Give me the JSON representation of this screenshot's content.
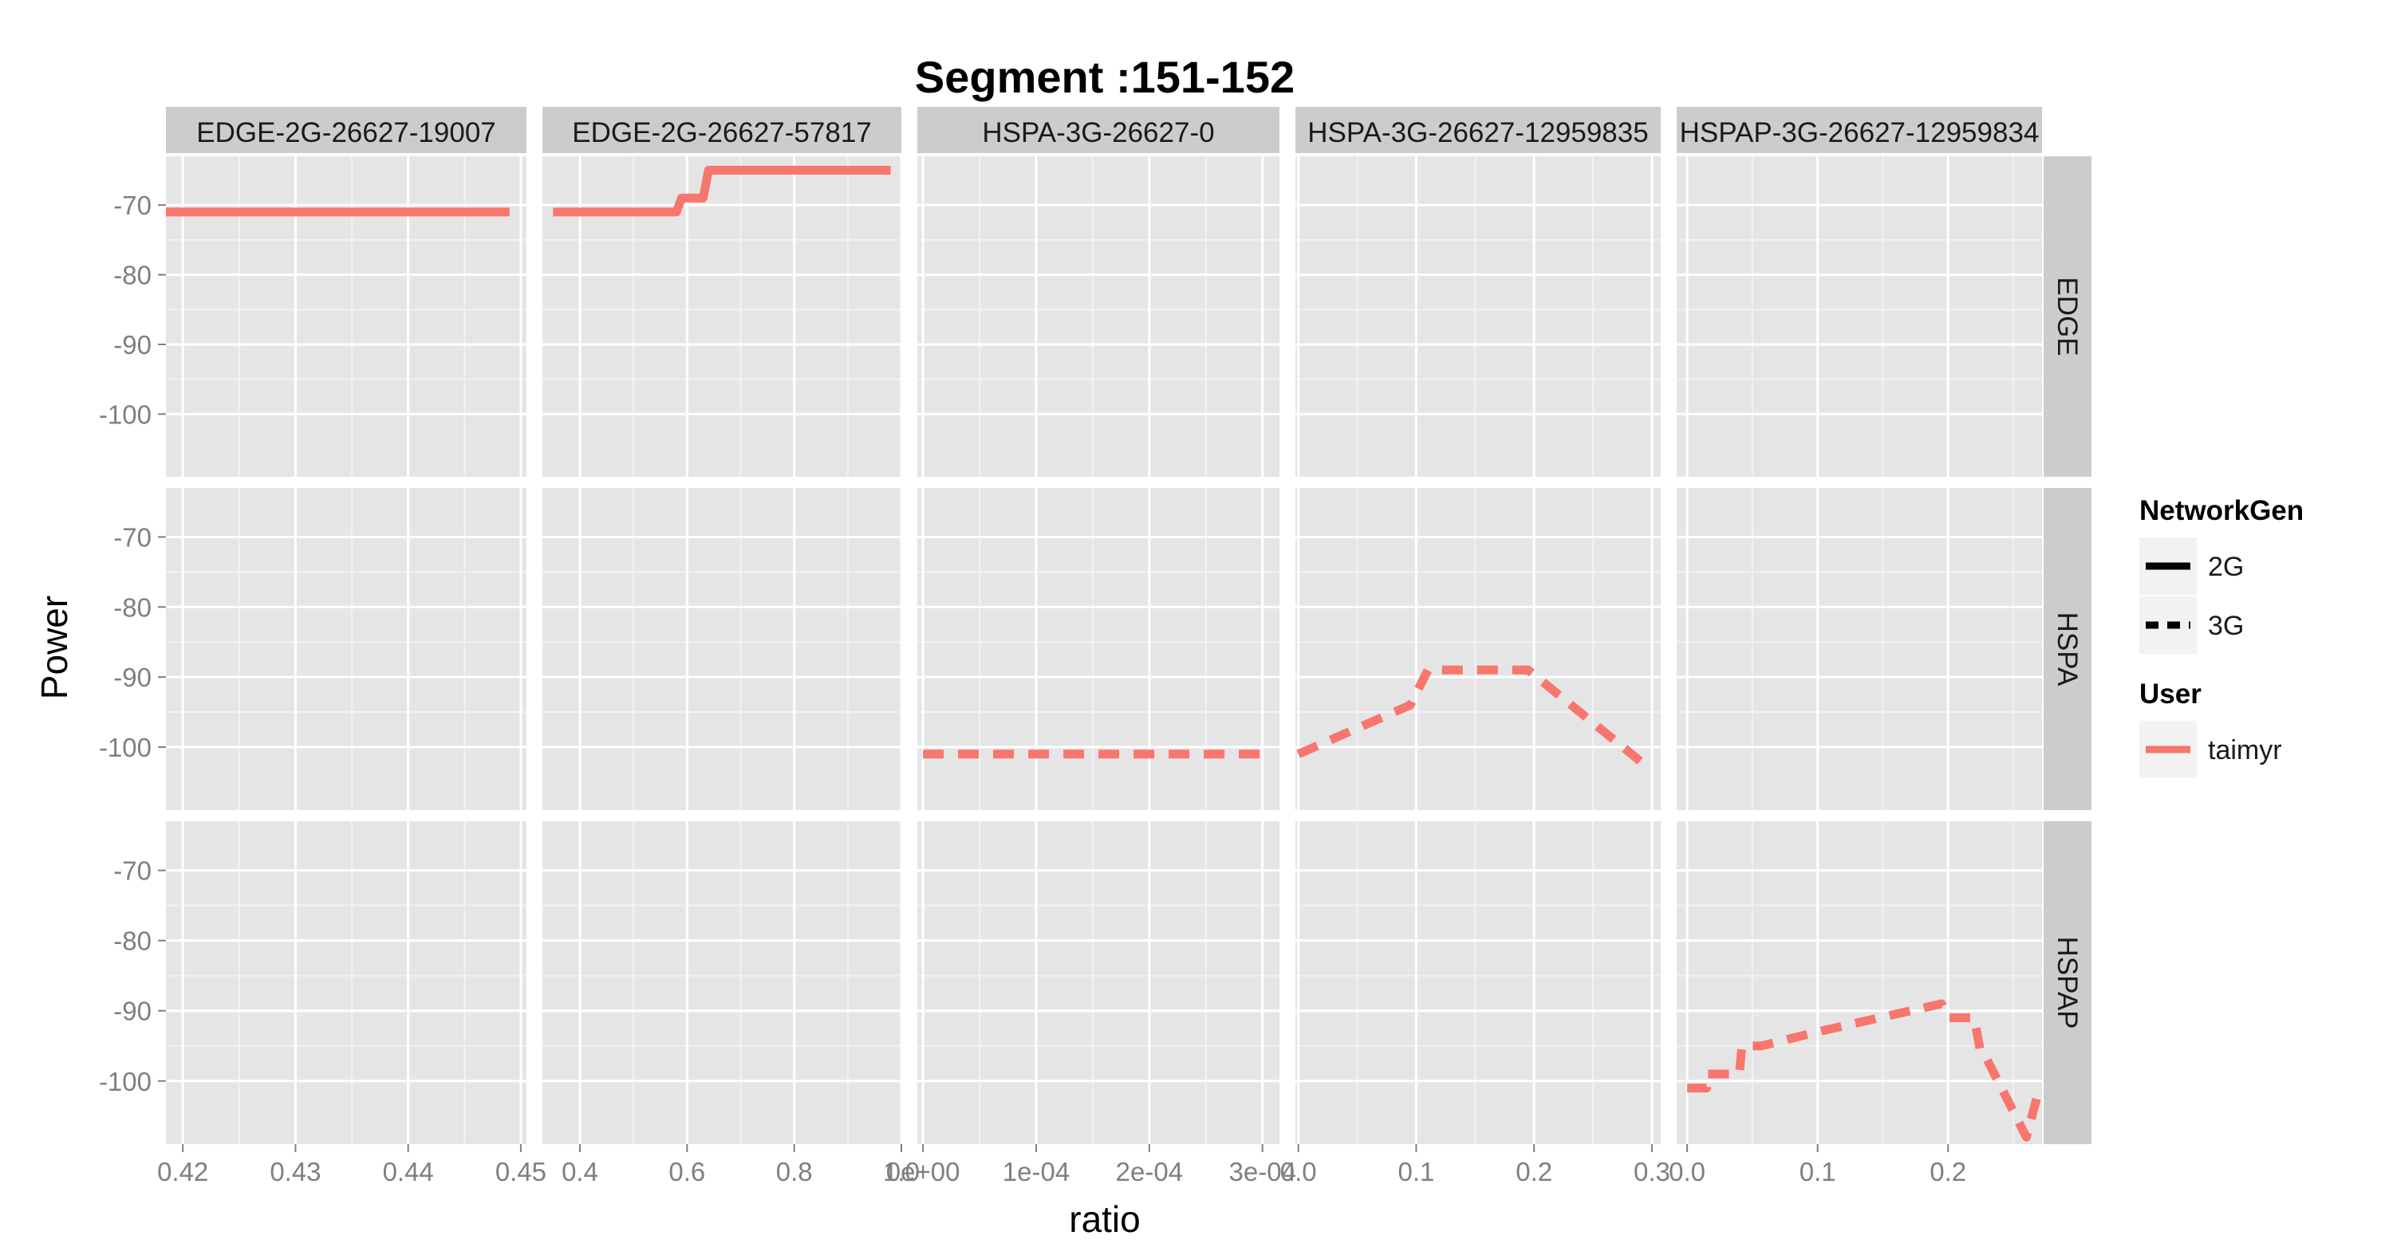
{
  "chart_data": {
    "type": "line",
    "title": "Segment :151-152",
    "xlabel": "ratio",
    "ylabel": "Power",
    "grid": true,
    "legend_position": "right",
    "facet_cols": [
      {
        "label": "EDGE-2G-26627-19007",
        "xlim": [
          0.4185,
          0.4505
        ],
        "xticks": [
          0.42,
          0.43,
          0.44,
          0.45
        ],
        "xtick_labels": [
          "0.42",
          "0.43",
          "0.44",
          "0.45"
        ]
      },
      {
        "label": "EDGE-2G-26627-57817",
        "xlim": [
          0.33,
          1.0
        ],
        "xticks": [
          0.4,
          0.6,
          0.8,
          1.0
        ],
        "xtick_labels": [
          "0.4",
          "0.6",
          "0.8",
          "1.0"
        ]
      },
      {
        "label": "HSPA-3G-26627-0",
        "xlim": [
          -5e-06,
          0.000315
        ],
        "xticks": [
          0,
          0.0001,
          0.0002,
          0.0003
        ],
        "xtick_labels": [
          "0e+00",
          "1e-04",
          "2e-04",
          "3e-04"
        ]
      },
      {
        "label": "HSPA-3G-26627-12959835",
        "xlim": [
          -0.0025,
          0.3075
        ],
        "xticks": [
          0,
          0.1,
          0.2,
          0.3
        ],
        "xtick_labels": [
          "0.0",
          "0.1",
          "0.2",
          "0.3"
        ]
      },
      {
        "label": "HSPAP-3G-26627-12959834",
        "xlim": [
          -0.008,
          0.272
        ],
        "xticks": [
          0,
          0.1,
          0.2
        ],
        "xtick_labels": [
          "0.0",
          "0.1",
          "0.2"
        ]
      }
    ],
    "facet_rows": [
      {
        "label": "EDGE"
      },
      {
        "label": "HSPA"
      },
      {
        "label": "HSPAP"
      }
    ],
    "ylim": [
      -109,
      -63
    ],
    "yticks": [
      -70,
      -80,
      -90,
      -100
    ],
    "ytick_labels": [
      "-70",
      "-80",
      "-90",
      "-100"
    ],
    "series_color": "#F8766D",
    "series": [
      {
        "row": 0,
        "col": 0,
        "network_gen": "2G",
        "x": [
          0.4185,
          0.449
        ],
        "y": [
          -71,
          -71
        ]
      },
      {
        "row": 0,
        "col": 1,
        "network_gen": "2G",
        "x": [
          0.35,
          0.58,
          0.59,
          0.63,
          0.64,
          0.98
        ],
        "y": [
          -71,
          -71,
          -69,
          -69,
          -65,
          -65
        ]
      },
      {
        "row": 1,
        "col": 2,
        "network_gen": "3G",
        "x": [
          0.0,
          0.0003
        ],
        "y": [
          -101,
          -101
        ]
      },
      {
        "row": 1,
        "col": 3,
        "network_gen": "3G",
        "x": [
          0.0,
          0.095,
          0.11,
          0.195,
          0.29
        ],
        "y": [
          -101,
          -94,
          -89,
          -89,
          -102
        ]
      },
      {
        "row": 2,
        "col": 4,
        "network_gen": "3G",
        "x": [
          0.0,
          0.015,
          0.015,
          0.04,
          0.042,
          0.055,
          0.057,
          0.1,
          0.195,
          0.2,
          0.22,
          0.225,
          0.23,
          0.26,
          0.27
        ],
        "y": [
          -101,
          -101,
          -99,
          -99,
          -95,
          -95,
          -95,
          -93,
          -89,
          -91,
          -91,
          -96,
          -97,
          -108,
          -101
        ]
      }
    ],
    "legends": [
      {
        "title": "NetworkGen",
        "entries": [
          {
            "label": "2G",
            "linetype": "solid",
            "color": "#000000"
          },
          {
            "label": "3G",
            "linetype": "dashed",
            "color": "#000000"
          }
        ]
      },
      {
        "title": "User",
        "entries": [
          {
            "label": "taimyr",
            "linetype": "solid",
            "color": "#F8766D"
          }
        ]
      }
    ],
    "panel_background": "#E5E5E5",
    "strip_background": "#CCCCCC"
  }
}
